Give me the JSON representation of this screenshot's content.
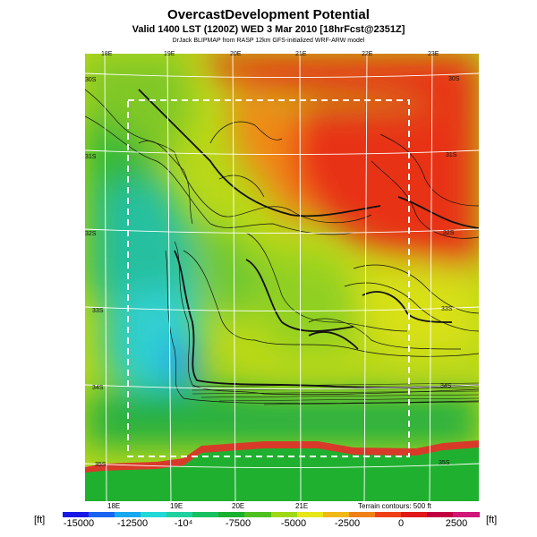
{
  "header": {
    "title": "OvercastDevelopment Potential",
    "valid_line": "Valid 1400 LST (1200Z) WED 3 Mar 2010 [18hrFcst@2351Z]",
    "source_line": "DrJack BLIPMAP from RASP 12km GFS-initialized WRF-ARW model"
  },
  "map": {
    "lon_top": [
      "18E",
      "19E",
      "20E",
      "21E",
      "22E",
      "23E"
    ],
    "lon_bottom": [
      "18E",
      "19E",
      "20E",
      "21E"
    ],
    "lat_left": [
      "30S",
      "31S",
      "32S",
      "33S",
      "34S",
      "35S"
    ],
    "lat_right": [
      "30S",
      "31S",
      "32S",
      "33S",
      "34S",
      "35S"
    ],
    "terrain_note": "Terrain contours: 500 ft"
  },
  "colorbar": {
    "unit": "[ft]",
    "ticks": [
      "-15000",
      "-12500",
      "-10⁴",
      "-7500",
      "-5000",
      "-2500",
      "0",
      "2500"
    ],
    "colors": [
      "#1818e6",
      "#1a64f0",
      "#18a8f0",
      "#22d8d8",
      "#20d0a0",
      "#18c060",
      "#1ab030",
      "#50c020",
      "#a0d818",
      "#e6e618",
      "#f0b818",
      "#f08018",
      "#f04018",
      "#e01818",
      "#c00040",
      "#d01878"
    ]
  }
}
